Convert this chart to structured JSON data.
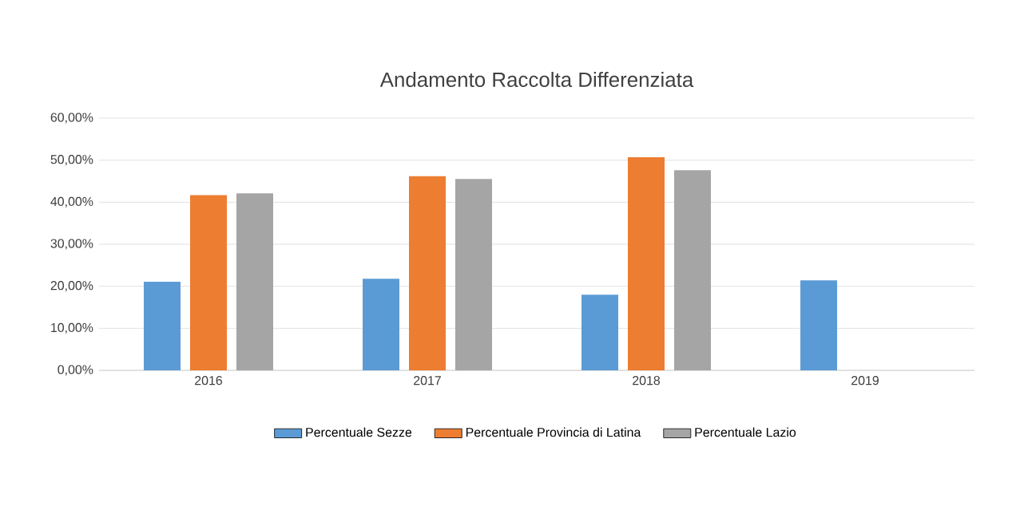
{
  "chart_data": {
    "type": "bar",
    "title": "Andamento Raccolta Differenziata",
    "categories": [
      "2016",
      "2017",
      "2018",
      "2019"
    ],
    "series": [
      {
        "name": "Percentuale Sezze",
        "color": "#5b9bd5",
        "values": [
          21.1,
          21.8,
          18.0,
          21.4
        ]
      },
      {
        "name": "Percentuale Provincia di Latina",
        "color": "#ed7d31",
        "values": [
          41.7,
          46.2,
          50.7,
          null
        ]
      },
      {
        "name": "Percentuale Lazio",
        "color": "#a5a5a5",
        "values": [
          42.1,
          45.5,
          47.6,
          null
        ]
      }
    ],
    "ylim": [
      0,
      60
    ],
    "yticks": [
      {
        "value": 0,
        "label": "0,00%"
      },
      {
        "value": 10,
        "label": "10,00%"
      },
      {
        "value": 20,
        "label": "20,00%"
      },
      {
        "value": 30,
        "label": "30,00%"
      },
      {
        "value": 40,
        "label": "40,00%"
      },
      {
        "value": 50,
        "label": "50,00%"
      },
      {
        "value": 60,
        "label": "60,00%"
      }
    ],
    "grid": "y",
    "legend": "bottom"
  }
}
